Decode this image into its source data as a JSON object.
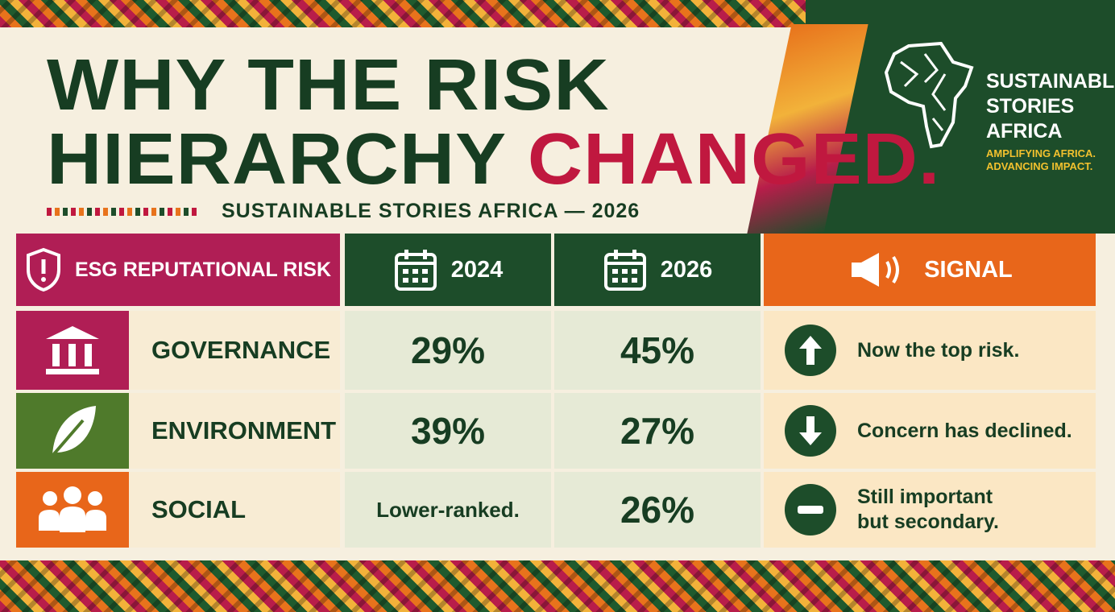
{
  "title": {
    "lines": [
      "WHY THE RISK",
      "HIERARCHY"
    ],
    "highlight": "CHANGED."
  },
  "subtitle": "SUSTAINABLE STORIES AFRICA — 2026",
  "brand": {
    "name": [
      "SUSTAINABLE",
      "STORIES",
      "AFRICA"
    ],
    "tagline": [
      "AMPLIFYING AFRICA.",
      "ADVANCING IMPACT."
    ]
  },
  "table": {
    "header": [
      "ESG REPUTATIONAL RISK",
      "2024",
      "2026",
      "SIGNAL"
    ],
    "rows": [
      [
        "GOVERNANCE",
        "29%",
        "45%",
        "Now the top risk."
      ],
      [
        "ENVIRONMENT",
        "39%",
        "27%",
        "Concern has declined."
      ],
      [
        "SOCIAL",
        "Lower-ranked.",
        "26%",
        "Still important but secondary."
      ]
    ]
  }
}
